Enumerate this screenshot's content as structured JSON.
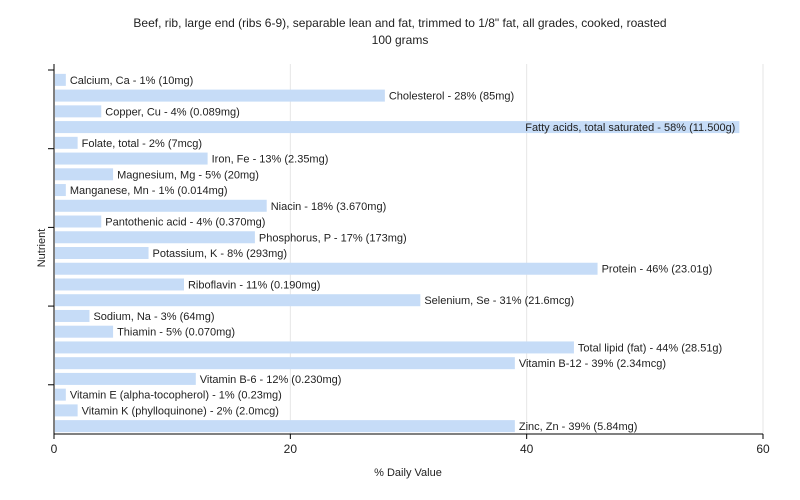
{
  "chart_data": {
    "type": "bar",
    "orientation": "horizontal",
    "title": "Beef, rib, large end (ribs 6-9), separable lean and fat, trimmed to 1/8\" fat, all grades, cooked, roasted",
    "subtitle": "100 grams",
    "xlabel": "% Daily Value",
    "ylabel": "Nutrient",
    "xlim": [
      0,
      60
    ],
    "xticks": [
      "0",
      "20",
      "40",
      "60"
    ],
    "grid": true,
    "bar_color": "#c6dcf7",
    "categories": [
      "Calcium, Ca",
      "Cholesterol",
      "Copper, Cu",
      "Fatty acids, total saturated",
      "Folate, total",
      "Iron, Fe",
      "Magnesium, Mg",
      "Manganese, Mn",
      "Niacin",
      "Pantothenic acid",
      "Phosphorus, P",
      "Potassium, K",
      "Protein",
      "Riboflavin",
      "Selenium, Se",
      "Sodium, Na",
      "Thiamin",
      "Total lipid (fat)",
      "Vitamin B-12",
      "Vitamin B-6",
      "Vitamin E (alpha-tocopherol)",
      "Vitamin K (phylloquinone)",
      "Zinc, Zn"
    ],
    "values": [
      1,
      28,
      4,
      58,
      2,
      13,
      5,
      1,
      18,
      4,
      17,
      8,
      46,
      11,
      31,
      3,
      5,
      44,
      39,
      12,
      1,
      2,
      39
    ],
    "labels": [
      "Calcium, Ca - 1% (10mg)",
      "Cholesterol - 28% (85mg)",
      "Copper, Cu - 4% (0.089mg)",
      "Fatty acids, total saturated - 58% (11.500g)",
      "Folate, total - 2% (7mcg)",
      "Iron, Fe - 13% (2.35mg)",
      "Magnesium, Mg - 5% (20mg)",
      "Manganese, Mn - 1% (0.014mg)",
      "Niacin - 18% (3.670mg)",
      "Pantothenic acid - 4% (0.370mg)",
      "Phosphorus, P - 17% (173mg)",
      "Potassium, K - 8% (293mg)",
      "Protein - 46% (23.01g)",
      "Riboflavin - 11% (0.190mg)",
      "Selenium, Se - 31% (21.6mcg)",
      "Sodium, Na - 3% (64mg)",
      "Thiamin - 5% (0.070mg)",
      "Total lipid (fat) - 44% (28.51g)",
      "Vitamin B-12 - 39% (2.34mcg)",
      "Vitamin B-6 - 12% (0.230mg)",
      "Vitamin E (alpha-tocopherol) - 1% (0.23mg)",
      "Vitamin K (phylloquinone) - 2% (2.0mcg)",
      "Zinc, Zn - 39% (5.84mg)"
    ]
  }
}
